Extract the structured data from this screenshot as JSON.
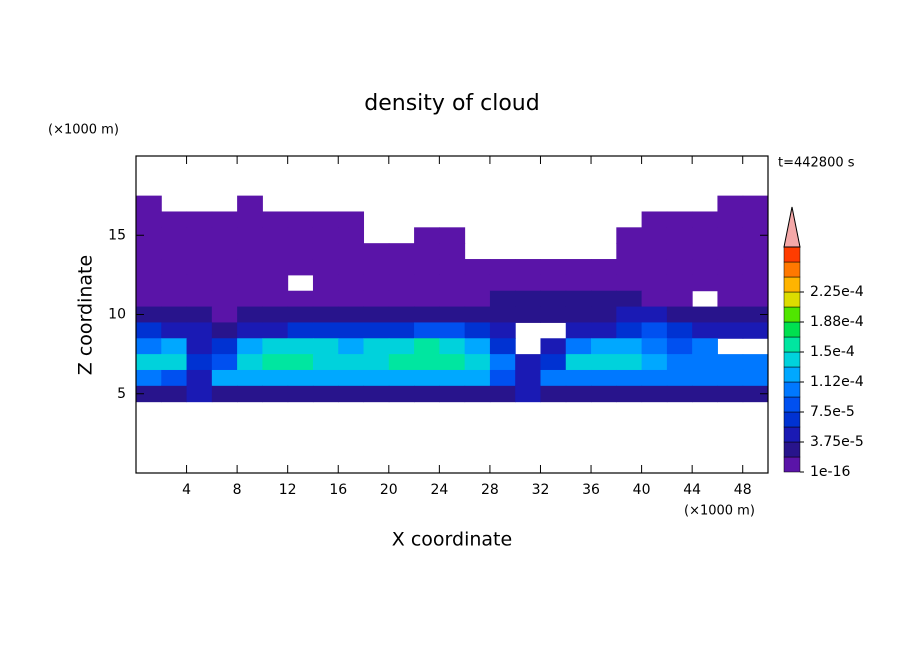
{
  "chart_data": {
    "type": "contour",
    "title": "density of cloud",
    "x_label": "X coordinate",
    "y_label": "Z coordinate",
    "x_unit": "(×1000 m)",
    "y_unit": "(×1000 m)",
    "time_label": "t=442800 s",
    "xlim": [
      0,
      50
    ],
    "ylim": [
      0,
      20
    ],
    "xticks": [
      4,
      8,
      12,
      16,
      20,
      24,
      28,
      32,
      36,
      40,
      44,
      48
    ],
    "yticks": [
      5,
      10,
      15
    ],
    "x": [
      1,
      3,
      5,
      7,
      9,
      11,
      13,
      15,
      17,
      19,
      21,
      23,
      25,
      27,
      29,
      31,
      33,
      35,
      37,
      39,
      41,
      43,
      45,
      47,
      49
    ],
    "z": [
      17,
      16,
      15,
      14,
      13,
      12,
      11,
      10,
      9,
      8,
      7,
      6,
      5
    ],
    "field": [
      [
        1e-06,
        null,
        null,
        null,
        1e-06,
        null,
        null,
        null,
        null,
        null,
        null,
        null,
        null,
        null,
        null,
        null,
        null,
        null,
        null,
        null,
        null,
        null,
        null,
        1e-06,
        1e-06
      ],
      [
        1e-06,
        1e-06,
        1e-06,
        1e-06,
        1e-06,
        1e-06,
        1e-06,
        1e-06,
        1e-06,
        null,
        null,
        null,
        null,
        null,
        null,
        null,
        null,
        null,
        null,
        null,
        1e-06,
        1e-06,
        1e-06,
        1e-06,
        1e-06
      ],
      [
        1e-06,
        1e-06,
        1e-06,
        1e-06,
        1e-06,
        1e-06,
        1e-06,
        1e-06,
        1e-06,
        null,
        null,
        1e-06,
        1e-06,
        null,
        null,
        null,
        null,
        null,
        null,
        1e-06,
        1e-06,
        1e-06,
        1e-06,
        1e-06,
        1e-06
      ],
      [
        1e-06,
        1e-06,
        1e-06,
        1e-06,
        1e-06,
        1e-06,
        1e-06,
        1e-06,
        1e-06,
        1e-06,
        1e-06,
        1e-06,
        1e-06,
        null,
        null,
        null,
        null,
        null,
        null,
        1e-06,
        1e-06,
        1e-06,
        1e-06,
        1e-06,
        1e-06
      ],
      [
        1e-06,
        1e-06,
        1e-06,
        1e-06,
        1e-06,
        1e-06,
        1e-06,
        1e-06,
        1e-06,
        1e-06,
        1e-06,
        1e-06,
        1e-06,
        1e-06,
        1e-06,
        1e-06,
        1e-06,
        1e-06,
        1e-06,
        1e-06,
        1e-06,
        1e-06,
        1e-06,
        1e-06,
        1e-06
      ],
      [
        1e-06,
        1e-06,
        1e-06,
        1e-06,
        1e-06,
        1e-06,
        null,
        1e-06,
        1e-06,
        1e-06,
        1e-06,
        1e-06,
        1e-06,
        1e-06,
        1e-06,
        1e-06,
        1e-06,
        1e-06,
        1e-06,
        1e-06,
        1e-06,
        1e-06,
        1e-06,
        1e-06,
        1e-06
      ],
      [
        1e-06,
        1e-06,
        1e-06,
        1e-06,
        1e-06,
        1e-06,
        1e-06,
        1e-06,
        1e-06,
        1e-06,
        1e-06,
        1e-06,
        1e-06,
        1e-06,
        2e-05,
        2e-05,
        2e-05,
        2e-05,
        2e-05,
        2e-05,
        1e-06,
        1e-06,
        null,
        1e-06,
        1e-06
      ],
      [
        2e-05,
        2e-05,
        2e-05,
        1e-06,
        2e-05,
        2e-05,
        2e-05,
        2e-05,
        2e-05,
        2e-05,
        2e-05,
        2e-05,
        2e-05,
        2e-05,
        2e-05,
        2e-05,
        2e-05,
        2e-05,
        2e-05,
        4e-05,
        4e-05,
        2e-05,
        2e-05,
        2e-05,
        2e-05
      ],
      [
        6e-05,
        4e-05,
        4e-05,
        2e-05,
        4e-05,
        4e-05,
        6e-05,
        6e-05,
        6e-05,
        6e-05,
        6e-05,
        8e-05,
        8e-05,
        6e-05,
        4e-05,
        null,
        null,
        4e-05,
        4e-05,
        6e-05,
        8e-05,
        6e-05,
        4e-05,
        4e-05,
        4e-05
      ],
      [
        0.0001,
        0.00012,
        4e-05,
        6e-05,
        0.00012,
        0.00014,
        0.00014,
        0.00014,
        0.00012,
        0.00014,
        0.00014,
        0.00015,
        0.00014,
        0.00012,
        6e-05,
        null,
        4e-05,
        0.0001,
        0.00012,
        0.00012,
        0.0001,
        8e-05,
        0.0001,
        null,
        null
      ],
      [
        0.00014,
        0.00014,
        6e-05,
        8e-05,
        0.00014,
        0.00016,
        0.00016,
        0.00014,
        0.00014,
        0.00014,
        0.00015,
        0.00016,
        0.00015,
        0.00014,
        0.0001,
        4e-05,
        6e-05,
        0.00014,
        0.00014,
        0.00014,
        0.00012,
        0.0001,
        0.0001,
        0.0001,
        0.0001
      ],
      [
        0.0001,
        8e-05,
        4e-05,
        0.00012,
        0.00012,
        0.00012,
        0.00012,
        0.00012,
        0.00012,
        0.00012,
        0.00012,
        0.00012,
        0.00012,
        0.00012,
        8e-05,
        4e-05,
        0.0001,
        0.0001,
        0.0001,
        0.0001,
        0.0001,
        0.0001,
        0.0001,
        0.0001,
        0.0001
      ],
      [
        2e-05,
        2e-05,
        4e-05,
        2e-05,
        2e-05,
        2e-05,
        2e-05,
        2e-05,
        2e-05,
        2e-05,
        2e-05,
        2e-05,
        2e-05,
        2e-05,
        2e-05,
        4e-05,
        2e-05,
        2e-05,
        2e-05,
        2e-05,
        2e-05,
        2e-05,
        2e-05,
        2e-05,
        2e-05
      ]
    ],
    "levels": [
      1e-16,
      1.875e-05,
      3.75e-05,
      5.625e-05,
      7.5e-05,
      9.375e-05,
      0.0001125,
      0.00013125,
      0.00015,
      0.00016875,
      0.0001875,
      0.00020625,
      0.000225,
      0.00024375,
      0.0002625,
      0.00028125
    ],
    "colors": [
      "#5a14a8",
      "#28148c",
      "#1a1ab4",
      "#0032d2",
      "#0050f0",
      "#0078ff",
      "#00a8ff",
      "#00d2dc",
      "#00e6a0",
      "#00e050",
      "#50e600",
      "#dcdc00",
      "#ffb400",
      "#ff7800",
      "#ff3c00"
    ],
    "extend_color": "#f4a8a8",
    "colorbar_ticks": [
      {
        "value": 1e-16,
        "label": "1e-16"
      },
      {
        "value": 3.75e-05,
        "label": "3.75e-5"
      },
      {
        "value": 7.5e-05,
        "label": "7.5e-5"
      },
      {
        "value": 0.0001125,
        "label": "1.12e-4"
      },
      {
        "value": 0.00015,
        "label": "1.5e-4"
      },
      {
        "value": 0.0001875,
        "label": "1.88e-4"
      },
      {
        "value": 0.000225,
        "label": "2.25e-4"
      }
    ]
  }
}
